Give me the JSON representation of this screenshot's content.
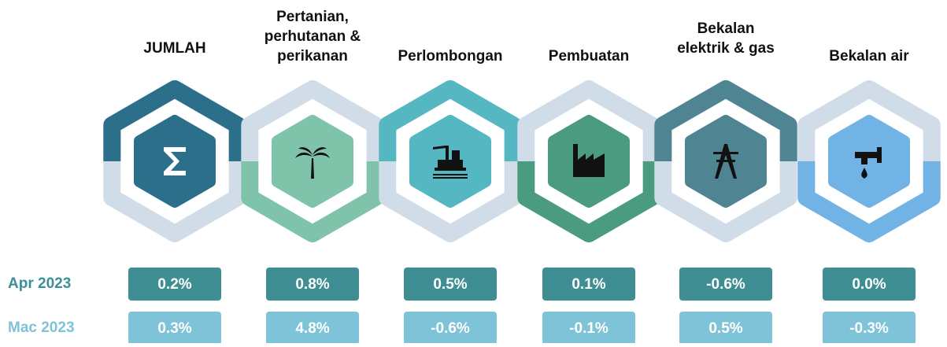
{
  "rows": [
    "Apr 2023",
    "Mac 2023"
  ],
  "sectors": [
    {
      "title": [
        "JUMLAH"
      ],
      "apr": "0.2%",
      "mac": "0.3%"
    },
    {
      "title": [
        "Pertanian,",
        "perhutanan &",
        "perikanan"
      ],
      "apr": "0.8%",
      "mac": "4.8%"
    },
    {
      "title": [
        "Perlombongan"
      ],
      "apr": "0.5%",
      "mac": "-0.6%"
    },
    {
      "title": [
        "Pembuatan"
      ],
      "apr": "0.1%",
      "mac": "-0.1%"
    },
    {
      "title": [
        "Bekalan",
        "elektrik & gas"
      ],
      "apr": "-0.6%",
      "mac": "0.5%"
    },
    {
      "title": [
        "Bekalan air"
      ],
      "apr": "0.0%",
      "mac": "-0.3%"
    }
  ]
}
